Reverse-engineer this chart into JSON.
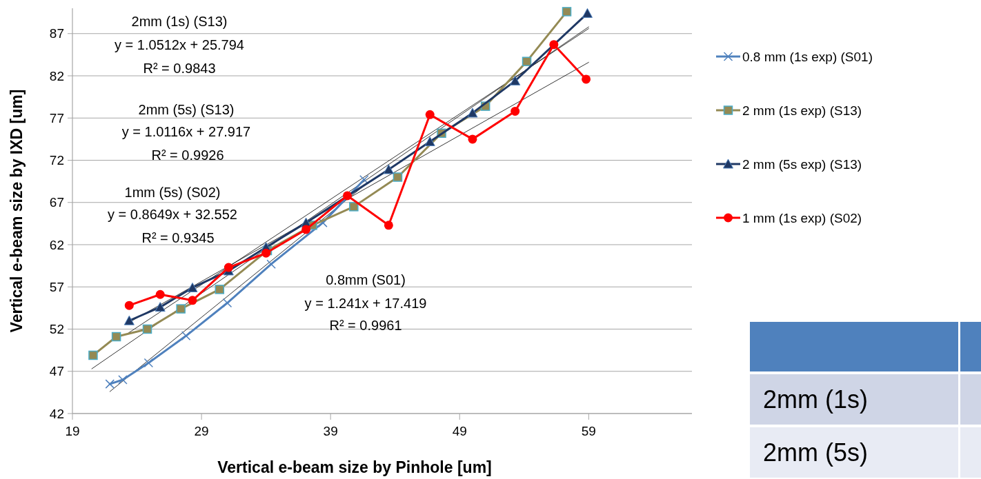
{
  "chart_data": {
    "type": "line",
    "xlabel": "Vertical e-beam size by Pinhole [um]",
    "ylabel": "Vertical e-beam size by IXD [um]",
    "xlim": [
      19,
      67
    ],
    "xticks": [
      19,
      29,
      39,
      49,
      59
    ],
    "ylim": [
      42,
      90
    ],
    "yticks": [
      42,
      47,
      52,
      57,
      62,
      67,
      72,
      77,
      82,
      87
    ],
    "grid": "y",
    "legend": "right",
    "line_style": "solid",
    "series": [
      {
        "name": "0.8 mm (1s exp) (S01)",
        "color": "#4f81bd",
        "marker": "cross",
        "x": [
          21.9,
          22.9,
          24.9,
          27.8,
          31,
          34.4,
          38.4,
          41.6
        ],
        "values": [
          45.5,
          46,
          48,
          51.2,
          55.1,
          59.7,
          64.6,
          69.7
        ]
      },
      {
        "name": "2 mm (1s exp) (S13)",
        "color": "#948a54",
        "marker": "square",
        "x": [
          20.6,
          22.4,
          24.8,
          27.4,
          30.4,
          34.1,
          37.6,
          40.8,
          44.2,
          47.6,
          51,
          54.2,
          57.3
        ],
        "values": [
          48.9,
          51.1,
          52,
          54.4,
          56.7,
          61.3,
          64.3,
          66.5,
          70,
          75.2,
          78.4,
          83.7,
          89.6
        ]
      },
      {
        "name": "2 mm (5s exp) (S13)",
        "color": "#1f3864",
        "marker": "triangle",
        "x": [
          23.4,
          25.8,
          28.3,
          31.1,
          34,
          37.1,
          40.3,
          43.5,
          46.7,
          50,
          53.3,
          58.9
        ],
        "values": [
          53,
          54.6,
          56.9,
          58.9,
          61.7,
          64.6,
          null,
          70.9,
          74.2,
          77.6,
          81.4,
          89.4
        ]
      },
      {
        "name": "1 mm (1s exp) (S02)",
        "color": "#ff0000",
        "marker": "circle",
        "x": [
          23.4,
          25.8,
          28.3,
          31.1,
          34,
          37.1,
          40.3,
          43.5,
          46.7,
          50,
          53.3,
          56.3,
          58.8
        ],
        "values": [
          54.8,
          56.1,
          55.4,
          59.3,
          61,
          63.8,
          67.8,
          64.3,
          77.4,
          74.5,
          77.8,
          85.7,
          81.6
        ]
      },
      {
        "color": "#000000",
        "marker": "none",
        "x": [
          21.9,
          41.6
        ],
        "values": [
          44.6,
          69
        ]
      },
      {
        "color": "#000000",
        "marker": "none",
        "x": [
          20.5,
          59
        ],
        "values": [
          47.3,
          87.8
        ]
      },
      {
        "color": "#000000",
        "marker": "none",
        "x": [
          23.3,
          59
        ],
        "values": [
          51.5,
          87.6
        ]
      },
      {
        "color": "#000000",
        "marker": "none",
        "x": [
          23.4,
          59
        ],
        "values": [
          52.8,
          83.6
        ]
      }
    ],
    "annotations": [
      "2mm (1s) (S13)",
      "y = 1.0512x + 25.794",
      "R² = 0.9843",
      "2mm (5s) (S13)",
      "y = 1.0116x + 27.917",
      "R² = 0.9926",
      "1mm (5s) (S02)",
      "y = 0.8649x + 32.552",
      "R² = 0.9345",
      "0.8mm (S01)",
      "y = 1.241x + 17.419",
      "R² = 0.9961",
      "2mm (1s)",
      "2mm (5s)"
    ]
  }
}
